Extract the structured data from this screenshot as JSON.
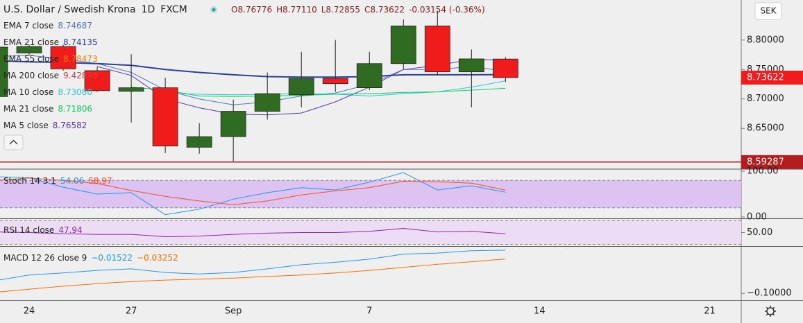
{
  "header": {
    "title": "U.S. Dollar / Swedish Krona",
    "interval": "1D",
    "source": "FXCM",
    "ohlc": [
      {
        "label": "O",
        "value": "8.76776"
      },
      {
        "label": "H",
        "value": "8.77110"
      },
      {
        "label": "L",
        "value": "8.72855"
      },
      {
        "label": "C",
        "value": "8.73622"
      }
    ],
    "change": "-0.03154 (-0.36%)"
  },
  "currency": "SEK",
  "chart_data": [
    {
      "type": "candlestick",
      "categories": [
        null,
        "24",
        null,
        null,
        "27",
        null,
        null,
        "Sep",
        null,
        null,
        null,
        "7",
        null,
        null,
        null,
        null,
        "14",
        null,
        null,
        null,
        null,
        "21",
        null
      ],
      "open": [
        8.704,
        8.778,
        8.789,
        8.748,
        8.713,
        8.719,
        8.618,
        8.636,
        8.679,
        8.707,
        8.735,
        8.719,
        8.76,
        8.824,
        8.746,
        8.76776,
        null,
        null,
        null,
        null,
        null,
        null,
        null
      ],
      "high": [
        8.79,
        8.792,
        8.792,
        8.755,
        8.776,
        8.736,
        8.659,
        8.699,
        8.745,
        8.78,
        8.8,
        8.78,
        8.835,
        8.85,
        8.784,
        8.7711,
        null,
        null,
        null,
        null,
        null,
        null,
        null
      ],
      "low": [
        8.7,
        8.775,
        8.748,
        8.712,
        8.66,
        8.608,
        8.607,
        8.594,
        8.665,
        8.686,
        8.712,
        8.715,
        8.751,
        8.741,
        8.686,
        8.72855,
        null,
        null,
        null,
        null,
        null,
        null,
        null
      ],
      "close": [
        8.788,
        8.789,
        8.751,
        8.714,
        8.719,
        8.62,
        8.636,
        8.679,
        8.709,
        8.735,
        8.726,
        8.76,
        8.824,
        8.746,
        8.768,
        8.73622,
        null,
        null,
        null,
        null,
        null,
        null,
        null
      ],
      "up_color": "#2f6b20",
      "down_color": "#f01c1c",
      "ylim": [
        8.582,
        8.868
      ],
      "yticks": [
        {
          "value": 8.65,
          "label": "8.65000"
        },
        {
          "value": 8.7,
          "label": "8.70000"
        },
        {
          "value": 8.75,
          "label": "8.75000"
        },
        {
          "value": 8.8,
          "label": "8.80000"
        }
      ],
      "price_lines": [
        {
          "value": 8.73622,
          "label": "8.73622",
          "color": "#f01c1c",
          "line": false
        },
        {
          "value": 8.59287,
          "label": "8.59287",
          "color": "#b31d1d",
          "line": true
        }
      ],
      "series": [
        {
          "name": "EMA 7 close",
          "legend_value": "8.74687",
          "color": "#4a78d0",
          "width": 1,
          "values": [
            8.772,
            8.774,
            8.768,
            8.76,
            8.745,
            8.715,
            8.7,
            8.69,
            8.695,
            8.705,
            8.71,
            8.725,
            8.75,
            8.75,
            8.755,
            8.74687,
            null,
            null,
            null,
            null,
            null,
            null,
            null
          ]
        },
        {
          "name": "EMA 21 close",
          "legend_value": "8.74135",
          "color": "#2b3f9e",
          "width": 2,
          "values": [
            8.765,
            8.763,
            8.762,
            8.76,
            8.757,
            8.75,
            8.745,
            8.741,
            8.738,
            8.737,
            8.737,
            8.738,
            8.741,
            8.741,
            8.741,
            8.74135,
            null,
            null,
            null,
            null,
            null,
            null,
            null
          ]
        },
        {
          "name": "EMA 55 close",
          "legend_value": "8.78473",
          "color": "#f57c00"
        },
        {
          "name": "MA 200 close",
          "legend_value": "9.42898",
          "color": "#e53935"
        },
        {
          "name": "MA 10 close",
          "legend_value": "8.73080",
          "color": "#26c6da",
          "width": 1,
          "values": [
            null,
            null,
            null,
            null,
            null,
            8.709,
            8.708,
            8.707,
            8.708,
            8.709,
            8.708,
            8.705,
            8.709,
            8.712,
            8.72,
            8.7308,
            null,
            null,
            null,
            null,
            null,
            null,
            null
          ]
        },
        {
          "name": "MA 21 close",
          "legend_value": "8.71806",
          "color": "#00d65a",
          "width": 1,
          "values": [
            null,
            null,
            null,
            null,
            8.72,
            8.715,
            8.705,
            8.704,
            8.705,
            8.706,
            8.708,
            8.709,
            8.711,
            8.712,
            8.715,
            8.71806,
            null,
            null,
            null,
            null,
            null,
            null,
            null
          ]
        },
        {
          "name": "MA 5 close",
          "legend_value": "8.76582",
          "color": "#5e35b1",
          "width": 1,
          "values": [
            null,
            null,
            null,
            8.755,
            8.74,
            8.7,
            8.685,
            8.674,
            8.673,
            8.676,
            8.695,
            8.72,
            8.75,
            8.757,
            8.767,
            8.76582,
            null,
            null,
            null,
            null,
            null,
            null,
            null
          ]
        }
      ]
    },
    {
      "type": "line",
      "name": "Stoch 14 3 1",
      "ylim": [
        -3,
        103
      ],
      "yticks": [
        {
          "value": 100,
          "label": "100.00"
        },
        {
          "value": 0,
          "label": "0.00"
        }
      ],
      "band": [
        20,
        80
      ],
      "band_color": "#dcc3f2",
      "series": [
        {
          "name": "%K",
          "legend_value": "54.06",
          "color": "#2196f3",
          "values": [
            88,
            86,
            65,
            50,
            53,
            5,
            17,
            39,
            53,
            64,
            59,
            76,
            97,
            59,
            68,
            54.06,
            null,
            null,
            null,
            null,
            null,
            null,
            null
          ]
        },
        {
          "name": "%D",
          "legend_value": "58.97",
          "color": "#f4511e",
          "values": [
            80,
            85,
            80,
            73,
            58,
            45,
            35,
            27,
            35,
            48,
            57,
            64,
            78,
            77,
            74,
            58.97,
            null,
            null,
            null,
            null,
            null,
            null,
            null
          ]
        }
      ]
    },
    {
      "type": "line",
      "name": "RSI 14 close",
      "ylim": [
        27.1,
        72.9
      ],
      "yticks": [
        {
          "value": 50,
          "label": "50.00"
        }
      ],
      "band": [
        30,
        70
      ],
      "band_color": "#ecdcf4",
      "series": [
        {
          "name": "RSI",
          "legend_value": "47.94",
          "color": "#8e24aa",
          "values": [
            51,
            50,
            48,
            47,
            47,
            43,
            44,
            47,
            49,
            50,
            50,
            52,
            57,
            51,
            52,
            47.94,
            null,
            null,
            null,
            null,
            null,
            null,
            null
          ]
        }
      ]
    },
    {
      "type": "line",
      "name": "MACD 12 26 close 9",
      "ylim": [
        -0.1133,
        -0.0086
      ],
      "yticks": [
        {
          "value": -0.1,
          "label": "−0.10000"
        }
      ],
      "series": [
        {
          "name": "MACD",
          "legend_value": "−0.01522",
          "color": "#2196f3",
          "values": [
            -0.0751,
            -0.064,
            -0.06,
            -0.055,
            -0.052,
            -0.059,
            -0.062,
            -0.059,
            -0.052,
            -0.044,
            -0.039,
            -0.033,
            -0.023,
            -0.021,
            -0.0165,
            -0.01522,
            null,
            null,
            null,
            null,
            null,
            null,
            null
          ]
        },
        {
          "name": "Signal",
          "legend_value": "−0.03252",
          "color": "#ff6d00",
          "values": [
            -0.0978,
            -0.092,
            -0.086,
            -0.081,
            -0.077,
            -0.074,
            -0.072,
            -0.07,
            -0.067,
            -0.064,
            -0.06,
            -0.055,
            -0.049,
            -0.043,
            -0.038,
            -0.03252,
            null,
            null,
            null,
            null,
            null,
            null,
            null
          ]
        }
      ]
    }
  ]
}
